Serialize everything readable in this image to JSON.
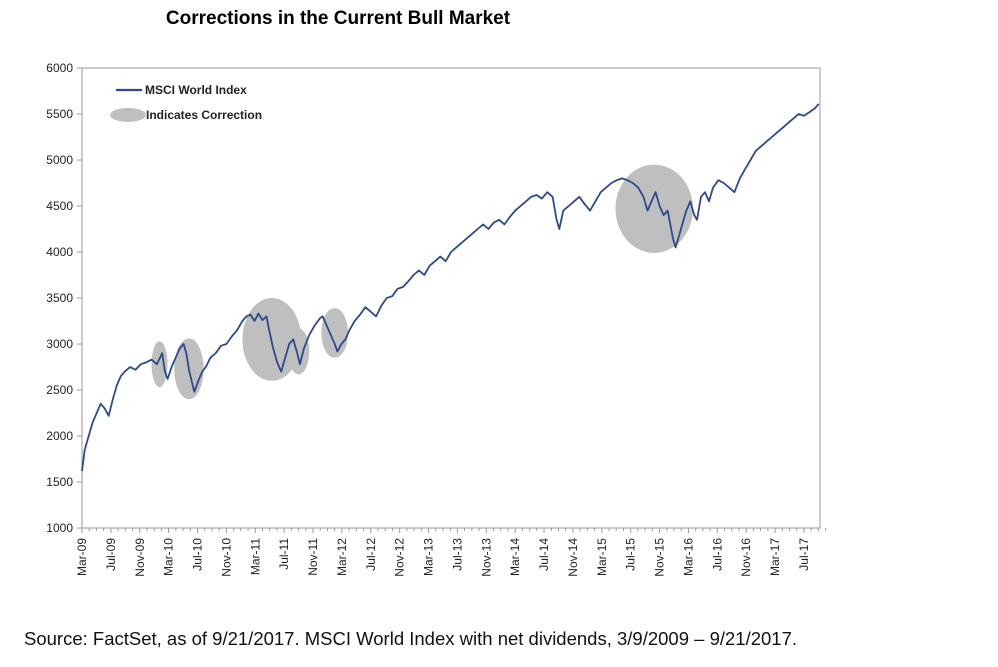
{
  "chart_data": {
    "type": "line",
    "title": "Corrections in the Current Bull Market",
    "series": [
      {
        "name": "MSCI World Index",
        "color": "#2b4a8b",
        "points": [
          [
            0.0,
            1620
          ],
          [
            0.1,
            1850
          ],
          [
            0.25,
            2000
          ],
          [
            0.4,
            2150
          ],
          [
            0.55,
            2250
          ],
          [
            0.7,
            2350
          ],
          [
            0.85,
            2300
          ],
          [
            1.0,
            2220
          ],
          [
            1.15,
            2400
          ],
          [
            1.3,
            2550
          ],
          [
            1.45,
            2650
          ],
          [
            1.6,
            2700
          ],
          [
            1.8,
            2750
          ],
          [
            2.0,
            2720
          ],
          [
            2.2,
            2780
          ],
          [
            2.4,
            2800
          ],
          [
            2.6,
            2830
          ],
          [
            2.8,
            2780
          ],
          [
            3.0,
            2900
          ],
          [
            3.1,
            2700
          ],
          [
            3.2,
            2620
          ],
          [
            3.35,
            2750
          ],
          [
            3.5,
            2850
          ],
          [
            3.65,
            2950
          ],
          [
            3.8,
            3000
          ],
          [
            3.9,
            2900
          ],
          [
            4.0,
            2720
          ],
          [
            4.1,
            2600
          ],
          [
            4.2,
            2480
          ],
          [
            4.35,
            2600
          ],
          [
            4.5,
            2700
          ],
          [
            4.65,
            2760
          ],
          [
            4.8,
            2850
          ],
          [
            5.0,
            2900
          ],
          [
            5.2,
            2980
          ],
          [
            5.4,
            3000
          ],
          [
            5.6,
            3080
          ],
          [
            5.8,
            3150
          ],
          [
            6.0,
            3250
          ],
          [
            6.15,
            3300
          ],
          [
            6.3,
            3320
          ],
          [
            6.45,
            3250
          ],
          [
            6.6,
            3330
          ],
          [
            6.75,
            3260
          ],
          [
            6.9,
            3300
          ],
          [
            7.0,
            3150
          ],
          [
            7.15,
            2950
          ],
          [
            7.3,
            2800
          ],
          [
            7.45,
            2700
          ],
          [
            7.6,
            2850
          ],
          [
            7.75,
            3000
          ],
          [
            7.9,
            3050
          ],
          [
            8.05,
            2900
          ],
          [
            8.15,
            2780
          ],
          [
            8.3,
            2950
          ],
          [
            8.5,
            3100
          ],
          [
            8.7,
            3200
          ],
          [
            8.9,
            3280
          ],
          [
            9.0,
            3300
          ],
          [
            9.15,
            3200
          ],
          [
            9.3,
            3100
          ],
          [
            9.45,
            3000
          ],
          [
            9.55,
            2920
          ],
          [
            9.7,
            3000
          ],
          [
            9.85,
            3050
          ],
          [
            10.0,
            3150
          ],
          [
            10.2,
            3250
          ],
          [
            10.4,
            3320
          ],
          [
            10.6,
            3400
          ],
          [
            10.8,
            3350
          ],
          [
            11.0,
            3300
          ],
          [
            11.2,
            3420
          ],
          [
            11.4,
            3500
          ],
          [
            11.6,
            3520
          ],
          [
            11.8,
            3600
          ],
          [
            12.0,
            3620
          ],
          [
            12.2,
            3680
          ],
          [
            12.4,
            3750
          ],
          [
            12.6,
            3800
          ],
          [
            12.8,
            3750
          ],
          [
            13.0,
            3850
          ],
          [
            13.2,
            3900
          ],
          [
            13.4,
            3950
          ],
          [
            13.6,
            3900
          ],
          [
            13.8,
            4000
          ],
          [
            14.0,
            4050
          ],
          [
            14.2,
            4100
          ],
          [
            14.4,
            4150
          ],
          [
            14.6,
            4200
          ],
          [
            14.8,
            4250
          ],
          [
            15.0,
            4300
          ],
          [
            15.2,
            4250
          ],
          [
            15.4,
            4320
          ],
          [
            15.6,
            4350
          ],
          [
            15.8,
            4300
          ],
          [
            16.0,
            4380
          ],
          [
            16.2,
            4450
          ],
          [
            16.4,
            4500
          ],
          [
            16.6,
            4550
          ],
          [
            16.8,
            4600
          ],
          [
            17.0,
            4620
          ],
          [
            17.2,
            4580
          ],
          [
            17.4,
            4650
          ],
          [
            17.6,
            4600
          ],
          [
            17.75,
            4350
          ],
          [
            17.85,
            4250
          ],
          [
            18.0,
            4450
          ],
          [
            18.2,
            4500
          ],
          [
            18.4,
            4550
          ],
          [
            18.6,
            4600
          ],
          [
            18.8,
            4520
          ],
          [
            19.0,
            4450
          ],
          [
            19.2,
            4550
          ],
          [
            19.4,
            4650
          ],
          [
            19.6,
            4700
          ],
          [
            19.8,
            4750
          ],
          [
            20.0,
            4780
          ],
          [
            20.2,
            4800
          ],
          [
            20.4,
            4780
          ],
          [
            20.6,
            4750
          ],
          [
            20.8,
            4700
          ],
          [
            21.0,
            4600
          ],
          [
            21.15,
            4450
          ],
          [
            21.3,
            4550
          ],
          [
            21.45,
            4650
          ],
          [
            21.6,
            4500
          ],
          [
            21.75,
            4400
          ],
          [
            21.9,
            4450
          ],
          [
            22.0,
            4300
          ],
          [
            22.1,
            4150
          ],
          [
            22.2,
            4050
          ],
          [
            22.3,
            4150
          ],
          [
            22.45,
            4300
          ],
          [
            22.6,
            4450
          ],
          [
            22.75,
            4550
          ],
          [
            22.9,
            4400
          ],
          [
            23.0,
            4350
          ],
          [
            23.15,
            4600
          ],
          [
            23.3,
            4650
          ],
          [
            23.45,
            4550
          ],
          [
            23.6,
            4700
          ],
          [
            23.8,
            4780
          ],
          [
            24.0,
            4750
          ],
          [
            24.2,
            4700
          ],
          [
            24.4,
            4650
          ],
          [
            24.6,
            4800
          ],
          [
            24.8,
            4900
          ],
          [
            25.0,
            5000
          ],
          [
            25.2,
            5100
          ],
          [
            25.4,
            5150
          ],
          [
            25.6,
            5200
          ],
          [
            25.8,
            5250
          ],
          [
            26.0,
            5300
          ],
          [
            26.2,
            5350
          ],
          [
            26.4,
            5400
          ],
          [
            26.6,
            5450
          ],
          [
            26.8,
            5500
          ],
          [
            27.0,
            5480
          ],
          [
            27.2,
            5520
          ],
          [
            27.4,
            5560
          ],
          [
            27.55,
            5610
          ]
        ]
      }
    ],
    "corrections_label": "Indicates Correction",
    "corrections": [
      {
        "center": [
          2.9,
          2780
        ],
        "rx": 0.3,
        "ry": 250
      },
      {
        "center": [
          4.0,
          2730
        ],
        "rx": 0.55,
        "ry": 330
      },
      {
        "center": [
          7.1,
          3050
        ],
        "rx": 1.1,
        "ry": 450
      },
      {
        "center": [
          8.1,
          2920
        ],
        "rx": 0.4,
        "ry": 250
      },
      {
        "center": [
          9.45,
          3120
        ],
        "rx": 0.5,
        "ry": 270
      },
      {
        "center": [
          21.4,
          4470
        ],
        "rx": 1.45,
        "ry": 480
      }
    ],
    "xlabel": "",
    "ylabel": "",
    "x_tick_labels": [
      "Mar-09",
      "Jul-09",
      "Nov-09",
      "Mar-10",
      "Jul-10",
      "Nov-10",
      "Mar-11",
      "Jul-11",
      "Nov-11",
      "Mar-12",
      "Jul-12",
      "Nov-12",
      "Mar-13",
      "Jul-13",
      "Nov-13",
      "Mar-14",
      "Jul-14",
      "Nov-14",
      "Mar-15",
      "Jul-15",
      "Nov-15",
      "Mar-16",
      "Jul-16",
      "Nov-16",
      "Mar-17",
      "Jul-17"
    ],
    "y_ticks": [
      1000,
      1500,
      2000,
      2500,
      3000,
      3500,
      4000,
      4500,
      5000,
      5500,
      6000
    ],
    "ylim": [
      1000,
      6000
    ],
    "xlim": [
      0,
      27.6
    ],
    "grid": false,
    "legend_position": "top-left"
  },
  "source_note": "Source: FactSet, as of 9/21/2017. MSCI World Index with net dividends, 3/9/2009 – 9/21/2017.",
  "colors": {
    "line": "#2b4a8b",
    "correction": "#bfbfbf",
    "frame": "#9a9a9a"
  }
}
